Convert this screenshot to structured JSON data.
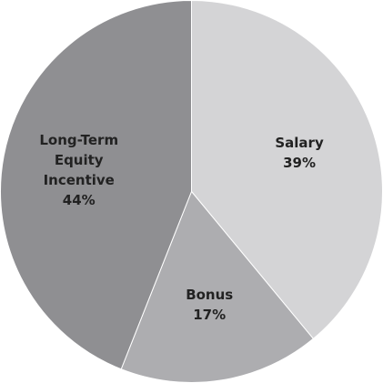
{
  "chart_data": {
    "type": "pie",
    "categories": [
      "Salary",
      "Bonus",
      "Long-Term Equity Incentive"
    ],
    "values": [
      39,
      17,
      44
    ],
    "value_labels": [
      "39%",
      "17%",
      "44%"
    ],
    "colors": [
      "#d4d4d6",
      "#adadb0",
      "#8f8f92"
    ]
  }
}
